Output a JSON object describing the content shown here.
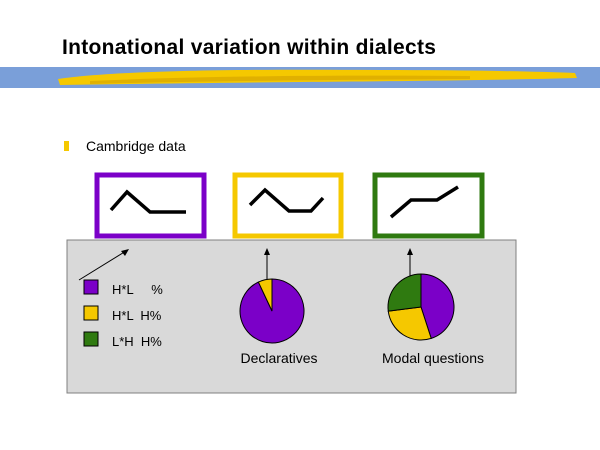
{
  "slide": {
    "title": "Intonational variation within dialects",
    "bullet": "Cambridge data",
    "accent_color": "#F5C800",
    "band_color": "#7A9FD9"
  },
  "chart_data": {
    "type": "pie",
    "legend_placement": "left",
    "legend": [
      {
        "label": "H*L     %",
        "color": "#7B00C8"
      },
      {
        "label": "H*L  H%",
        "color": "#F5C800"
      },
      {
        "label": "L*H  H%",
        "color": "#2F7A10"
      }
    ],
    "pies": [
      {
        "caption": "Declaratives",
        "values": [
          93,
          7,
          0
        ]
      },
      {
        "caption": "Modal questions",
        "values": [
          45,
          28,
          27
        ]
      }
    ],
    "contour_boxes": [
      {
        "name": "fall",
        "color": "#7B00C8"
      },
      {
        "name": "fall-rise",
        "color": "#F5C800"
      },
      {
        "name": "rise",
        "color": "#2F7A10"
      }
    ]
  }
}
